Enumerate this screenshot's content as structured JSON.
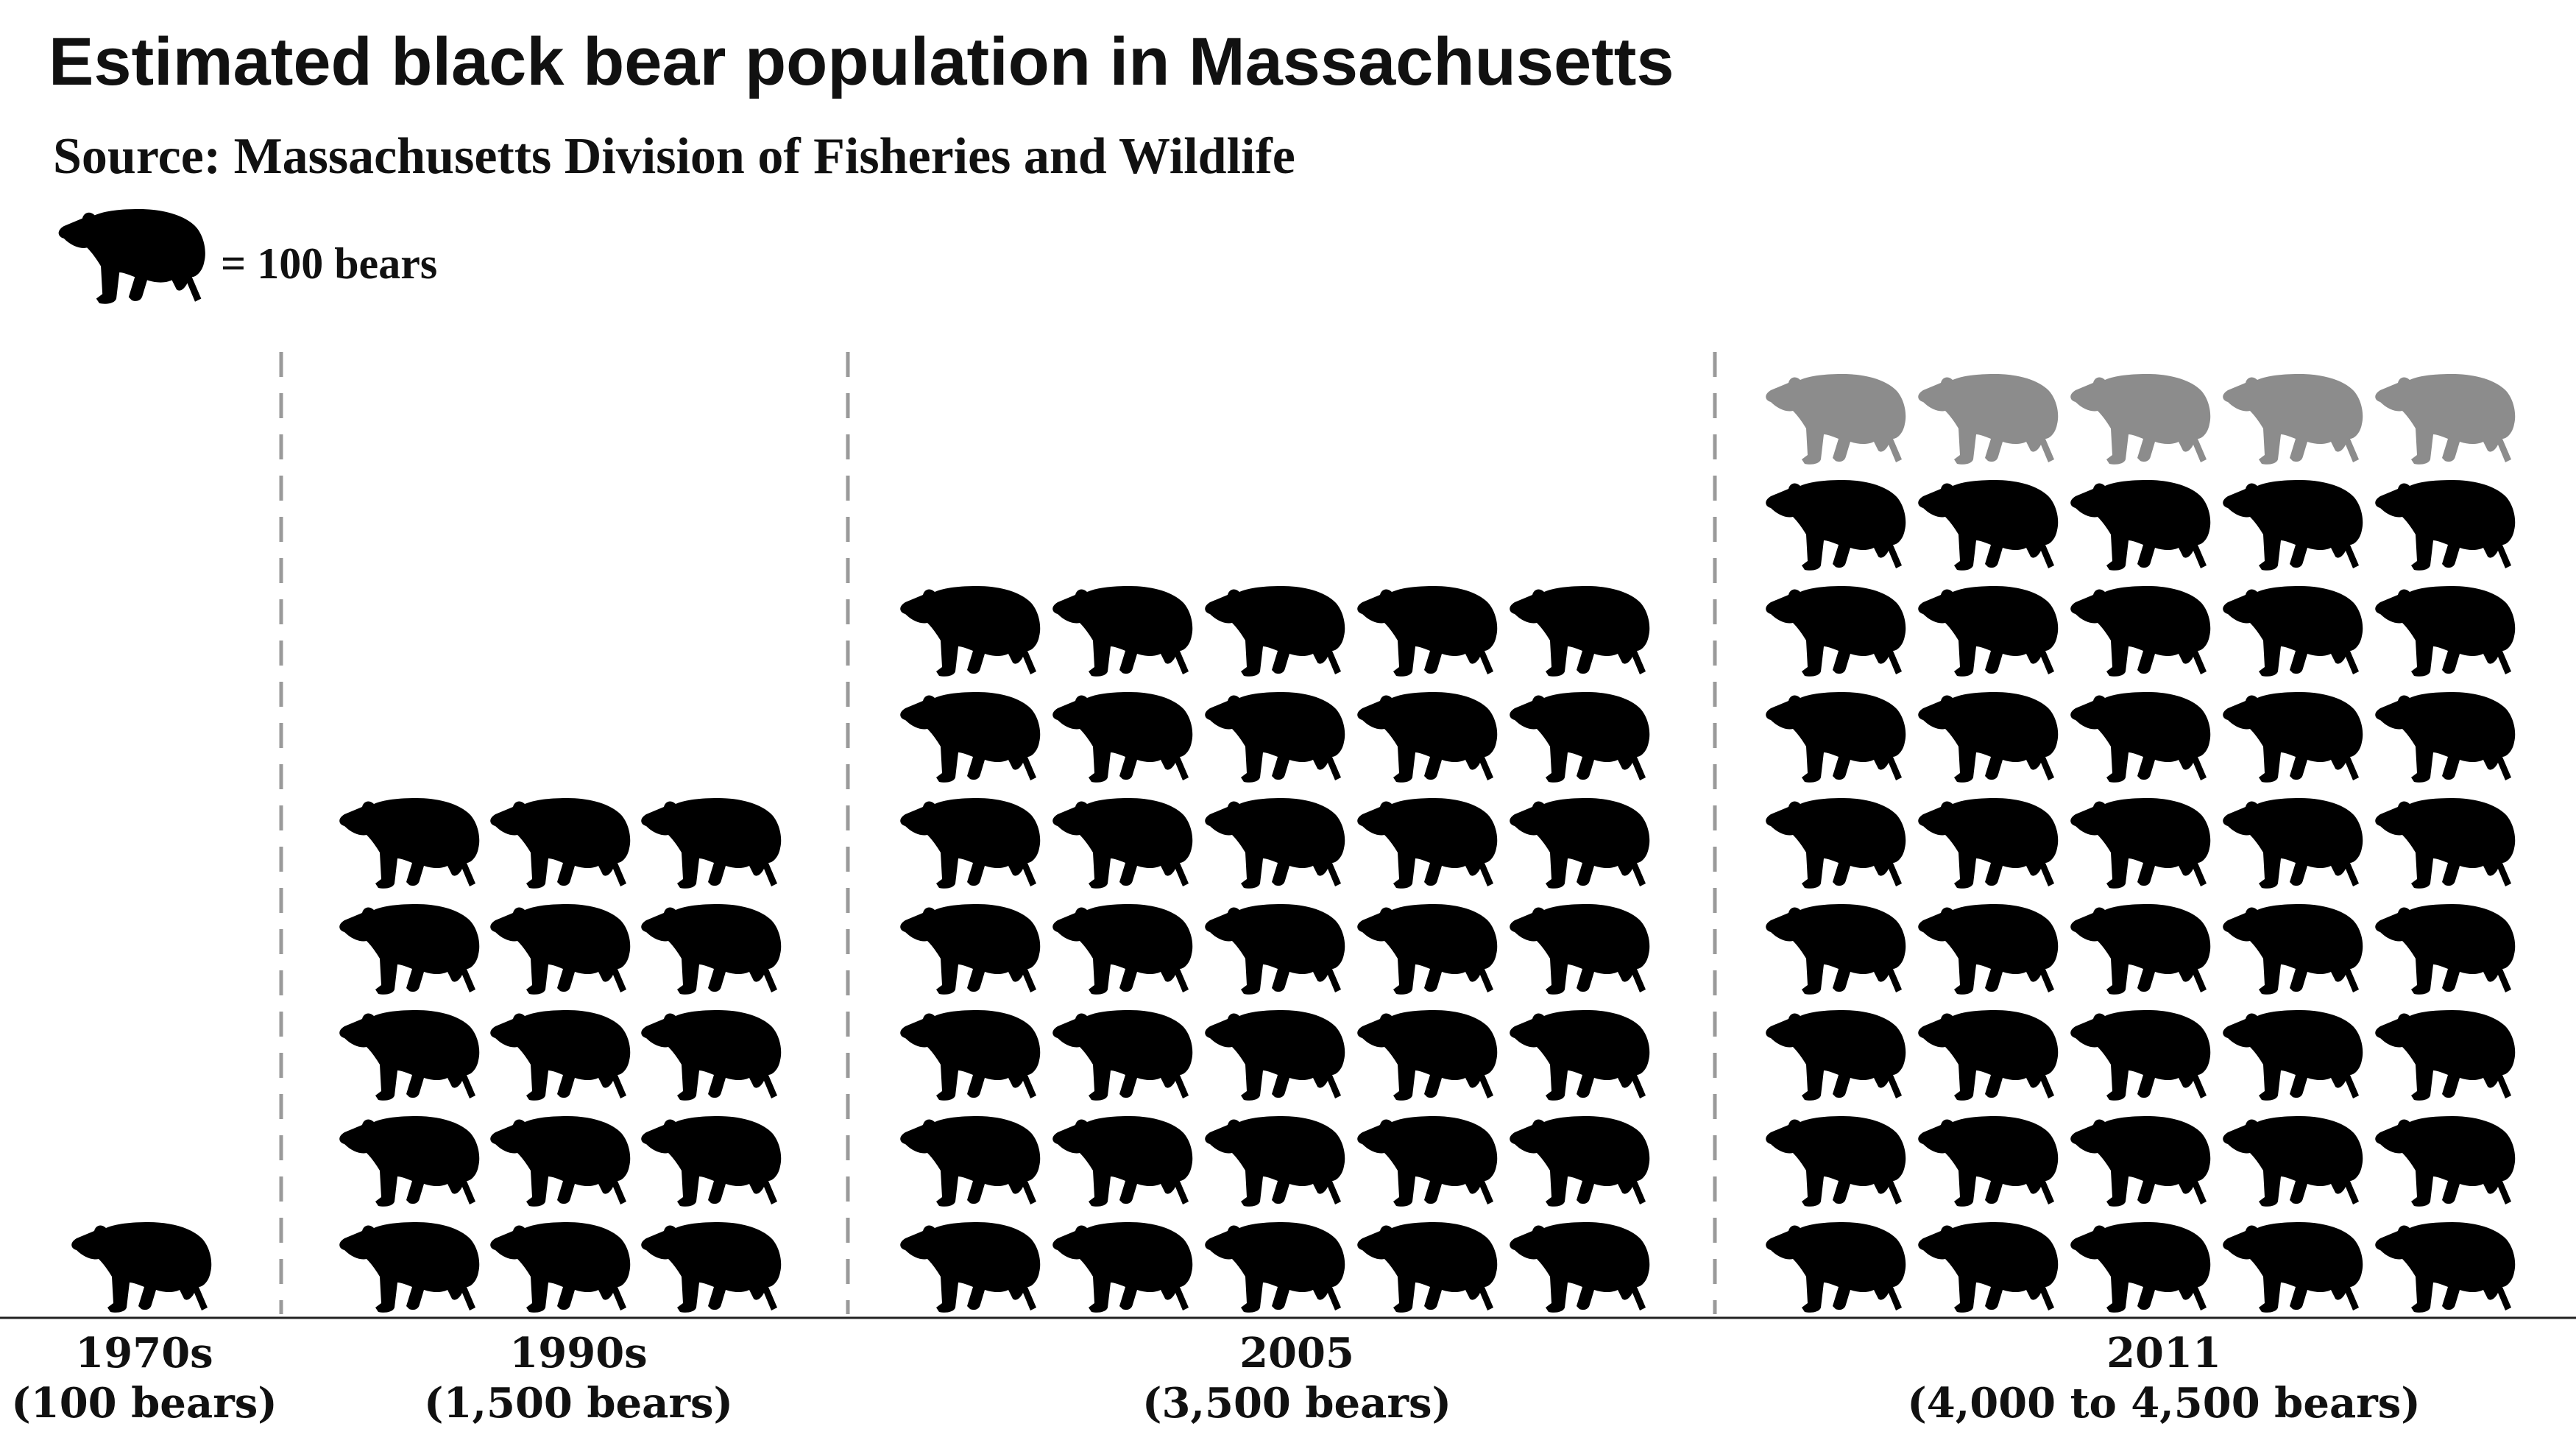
{
  "chart_data": {
    "type": "pictograph",
    "title": "Estimated black bear population in Massachusetts",
    "subtitle": "Source: Massachusetts Division of Fisheries and Wildlife",
    "legend": {
      "icon": "bear-icon",
      "label": "= 100 bears",
      "unit_value": 100
    },
    "categories": [
      {
        "label": "1970s",
        "sublabel": "(100 bears)",
        "value": 100,
        "upper": 100
      },
      {
        "label": "1990s",
        "sublabel": "(1,500 bears)",
        "value": 1500,
        "upper": 1500
      },
      {
        "label": "2005",
        "sublabel": "(3,500 bears)",
        "value": 3500,
        "upper": 3500
      },
      {
        "label": "2011",
        "sublabel": "(4,000 to 4,500 bears)",
        "value": 4000,
        "upper": 4500
      }
    ],
    "colors": {
      "certain": "#000000",
      "range": "#8c8c8c",
      "divider": "#9a9a9a",
      "axis": "#222222"
    }
  }
}
